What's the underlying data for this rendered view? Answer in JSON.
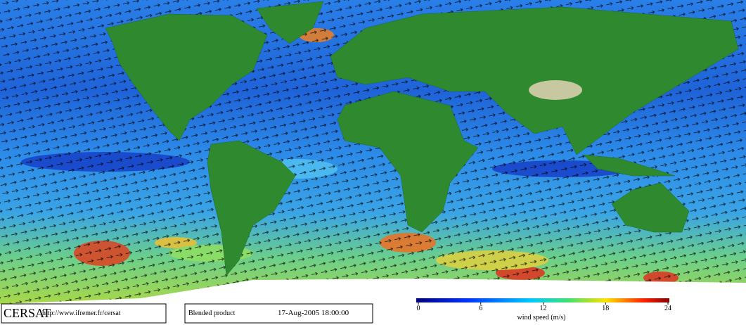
{
  "footer": {
    "logo": "CERSAT",
    "url": "http://www.ifremer.fr/cersat",
    "product": "Blended product",
    "date": "17-Aug-2005 18:00:00"
  },
  "colorbar": {
    "lim": [
      0,
      24
    ],
    "ticks": [
      0,
      6,
      12,
      18,
      24
    ],
    "label": "wind speed (m/s)"
  }
}
